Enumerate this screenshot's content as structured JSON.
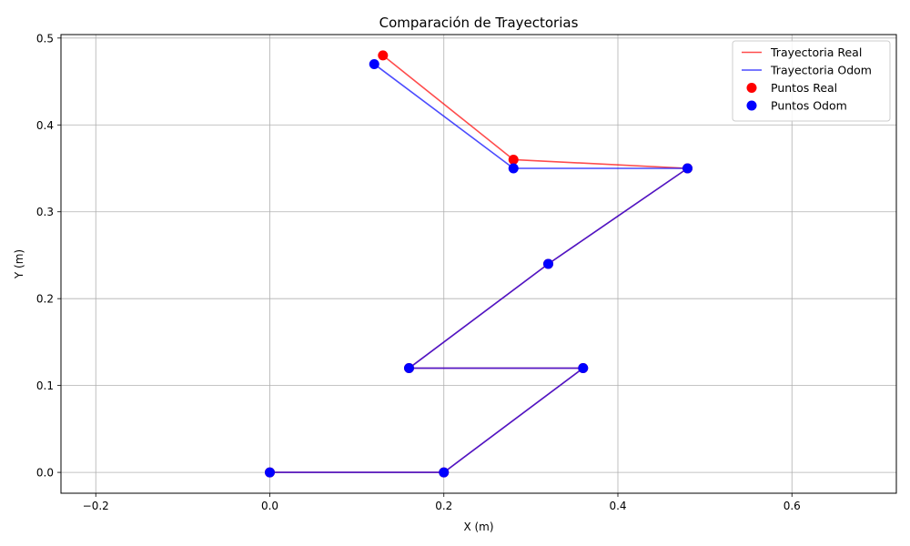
{
  "chart_data": {
    "type": "line",
    "title": "Comparación de Trayectorias",
    "xlabel": "X (m)",
    "ylabel": "Y (m)",
    "xlim": [
      -0.24,
      0.72
    ],
    "ylim": [
      -0.024,
      0.504
    ],
    "xticks": [
      -0.2,
      0.0,
      0.2,
      0.4,
      0.6
    ],
    "yticks": [
      0.0,
      0.1,
      0.2,
      0.3,
      0.4,
      0.5
    ],
    "xtick_labels": [
      "−0.2",
      "0.0",
      "0.2",
      "0.4",
      "0.6"
    ],
    "ytick_labels": [
      "0.0",
      "0.1",
      "0.2",
      "0.3",
      "0.4",
      "0.5"
    ],
    "grid": true,
    "legend_position": "top-right",
    "series": [
      {
        "name": "Trayectoria Real",
        "kind": "line",
        "color": "#ff0000",
        "x": [
          0.0,
          0.2,
          0.36,
          0.16,
          0.32,
          0.48,
          0.28,
          0.13
        ],
        "y": [
          0.0,
          0.0,
          0.12,
          0.12,
          0.24,
          0.35,
          0.36,
          0.48
        ]
      },
      {
        "name": "Trayectoria Odom",
        "kind": "line",
        "color": "#0000ff",
        "x": [
          0.0,
          0.2,
          0.36,
          0.16,
          0.32,
          0.48,
          0.28,
          0.12
        ],
        "y": [
          0.0,
          0.0,
          0.12,
          0.12,
          0.24,
          0.35,
          0.35,
          0.47
        ]
      },
      {
        "name": "Puntos Real",
        "kind": "points",
        "color": "#ff0000",
        "x": [
          0.0,
          0.2,
          0.36,
          0.16,
          0.32,
          0.48,
          0.28,
          0.13
        ],
        "y": [
          0.0,
          0.0,
          0.12,
          0.12,
          0.24,
          0.35,
          0.36,
          0.48
        ]
      },
      {
        "name": "Puntos Odom",
        "kind": "points",
        "color": "#0000ff",
        "x": [
          0.0,
          0.2,
          0.36,
          0.16,
          0.32,
          0.48,
          0.28,
          0.12
        ],
        "y": [
          0.0,
          0.0,
          0.12,
          0.12,
          0.24,
          0.35,
          0.35,
          0.47
        ]
      }
    ]
  }
}
